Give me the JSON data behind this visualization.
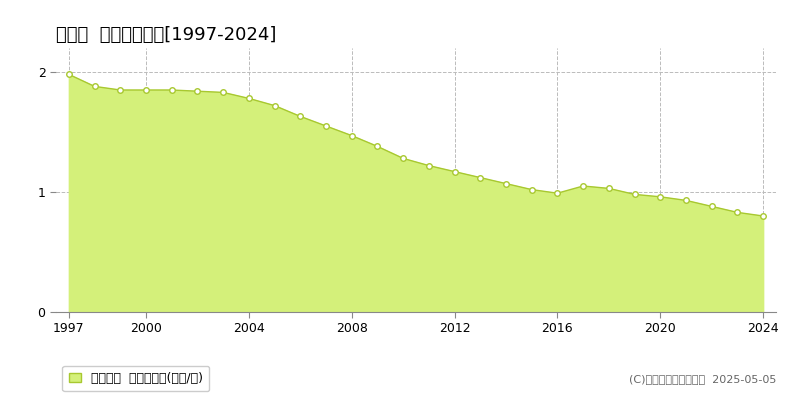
{
  "title": "中川町  基準地価推移[1997-2024]",
  "years": [
    1997,
    1998,
    1999,
    2000,
    2001,
    2002,
    2003,
    2004,
    2005,
    2006,
    2007,
    2008,
    2009,
    2010,
    2011,
    2012,
    2013,
    2014,
    2015,
    2016,
    2017,
    2018,
    2019,
    2020,
    2021,
    2022,
    2023,
    2024
  ],
  "values": [
    1.98,
    1.88,
    1.85,
    1.85,
    1.85,
    1.84,
    1.83,
    1.78,
    1.72,
    1.63,
    1.55,
    1.47,
    1.38,
    1.28,
    1.22,
    1.17,
    1.12,
    1.07,
    1.02,
    0.99,
    1.05,
    1.03,
    0.98,
    0.96,
    0.93,
    0.88,
    0.83,
    0.8
  ],
  "fill_color": "#d4f07a",
  "line_color": "#a8c830",
  "marker_facecolor": "#ffffff",
  "marker_edgecolor": "#a8c830",
  "grid_color": "#bbbbbb",
  "bg_color": "#ffffff",
  "ylim": [
    0,
    2.2
  ],
  "yticks": [
    0,
    1,
    2
  ],
  "xlim_start": 1996.5,
  "xlim_end": 2024.5,
  "xticks": [
    1997,
    2000,
    2004,
    2008,
    2012,
    2016,
    2020,
    2024
  ],
  "legend_label": "基準地価  平均坪単価(万円/坪)",
  "copyright_text": "(C)土地価格ドットコム  2025-05-05",
  "title_fontsize": 13,
  "tick_fontsize": 9,
  "legend_fontsize": 9,
  "copyright_fontsize": 8
}
